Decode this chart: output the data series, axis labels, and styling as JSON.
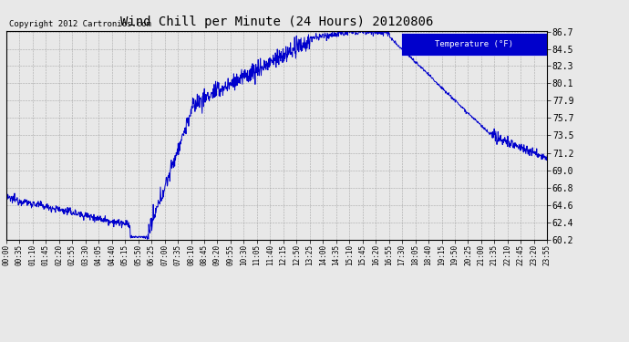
{
  "title": "Wind Chill per Minute (24 Hours) 20120806",
  "copyright": "Copyright 2012 Cartronics.com",
  "legend_label": "Temperature (°F)",
  "line_color": "#0000CC",
  "background_color": "#E8E8E8",
  "plot_bg_color": "#E8E8E8",
  "ylim": [
    60.2,
    86.7
  ],
  "yticks": [
    60.2,
    62.4,
    64.6,
    66.8,
    69.0,
    71.2,
    73.5,
    75.7,
    77.9,
    80.1,
    82.3,
    84.5,
    86.7
  ],
  "xtick_labels": [
    "00:00",
    "00:35",
    "01:10",
    "01:45",
    "02:20",
    "02:55",
    "03:30",
    "04:05",
    "04:40",
    "05:15",
    "05:50",
    "06:25",
    "07:00",
    "07:35",
    "08:10",
    "08:45",
    "09:20",
    "09:55",
    "10:30",
    "11:05",
    "11:40",
    "12:15",
    "12:50",
    "13:25",
    "14:00",
    "14:35",
    "15:10",
    "15:45",
    "16:20",
    "16:55",
    "17:30",
    "18:05",
    "18:40",
    "19:15",
    "19:50",
    "20:25",
    "21:00",
    "21:35",
    "22:10",
    "22:45",
    "23:20",
    "23:55"
  ],
  "figsize": [
    6.9,
    3.75
  ],
  "dpi": 100
}
